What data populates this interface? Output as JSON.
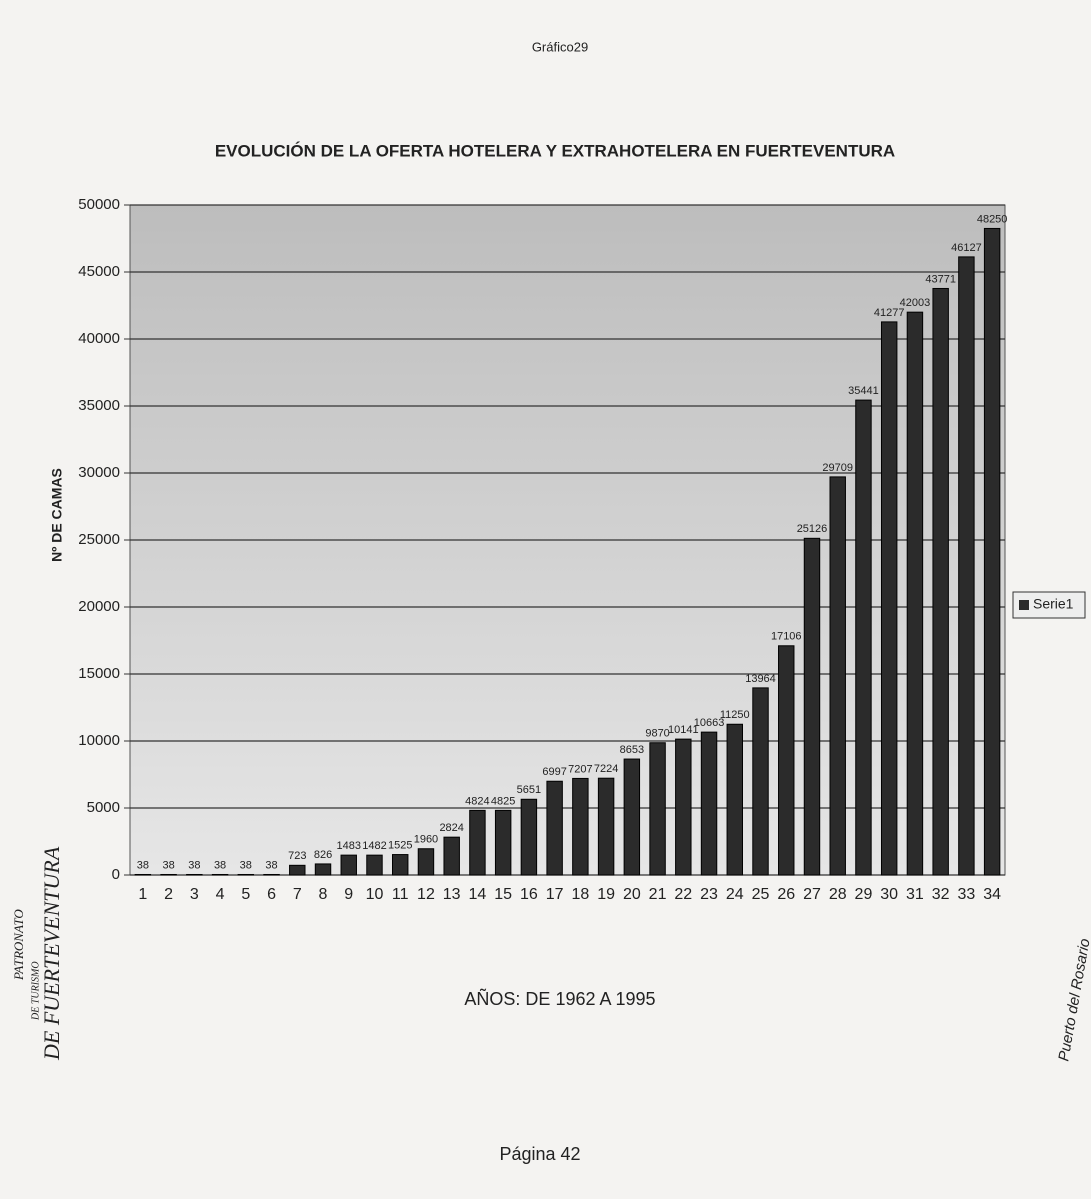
{
  "header": "Gráfico29",
  "footer": "Página 42",
  "logo": [
    "PATRONATO",
    "DE TURISMO",
    "DE FUERTEVENTURA"
  ],
  "side_text": "Puerto del Rosario",
  "chart_data": {
    "type": "bar",
    "title": "EVOLUCIÓN DE LA OFERTA HOTELERA Y EXTRAHOTELERA EN FUERTEVENTURA",
    "y_label": "Nº DE CAMAS",
    "x_label": "AÑOS: DE 1962 A 1995",
    "categories": [
      "1",
      "2",
      "3",
      "4",
      "5",
      "6",
      "7",
      "8",
      "9",
      "10",
      "11",
      "12",
      "13",
      "14",
      "15",
      "16",
      "17",
      "18",
      "19",
      "20",
      "21",
      "22",
      "23",
      "24",
      "25",
      "26",
      "27",
      "28",
      "29",
      "30",
      "31",
      "32",
      "33",
      "34"
    ],
    "series": [
      {
        "name": "Serie1",
        "color": "#2b2b2b",
        "values": [
          38,
          38,
          38,
          38,
          38,
          38,
          723,
          826,
          1483,
          1482,
          1525,
          1960,
          2824,
          4824,
          4825,
          5651,
          6997,
          7207,
          7224,
          8653,
          9870,
          10141,
          10663,
          11250,
          13964,
          17106,
          25126,
          29709,
          35441,
          41277,
          42003,
          43771,
          46127,
          48250
        ]
      }
    ],
    "ylim": [
      0,
      50000
    ],
    "yticks": [
      0,
      5000,
      10000,
      15000,
      20000,
      25000,
      30000,
      35000,
      40000,
      45000,
      50000
    ],
    "grid": true,
    "legend": "right"
  }
}
